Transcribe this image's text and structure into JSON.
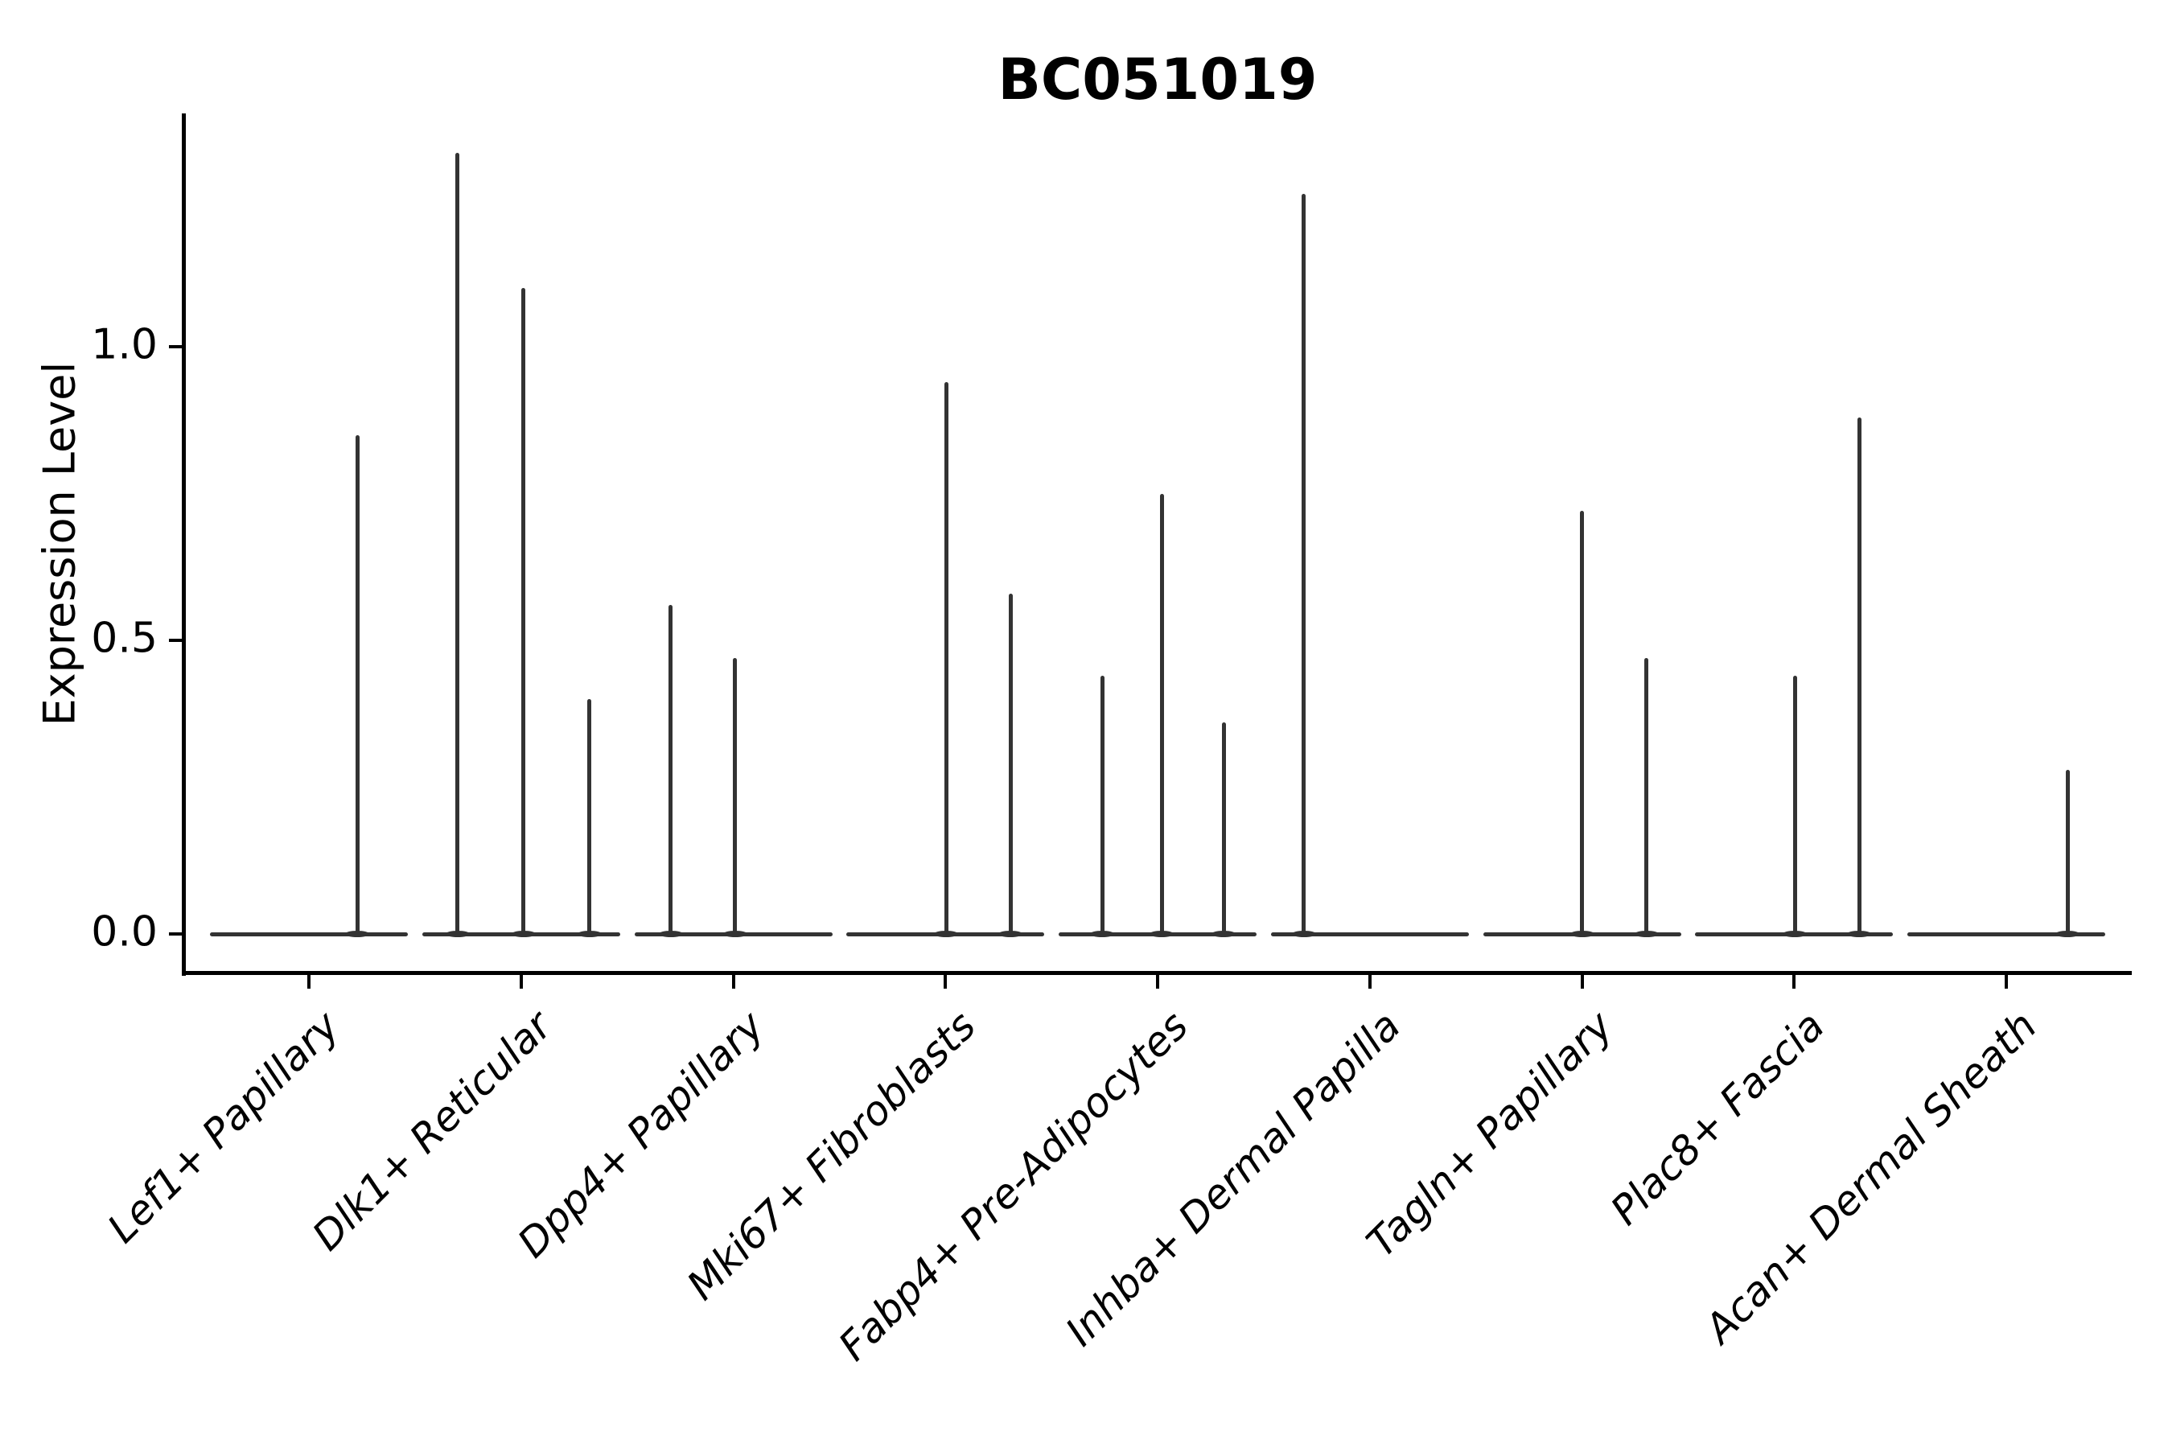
{
  "title": "BC051019",
  "y_axis": {
    "label": "Expression Level",
    "tick_labels": [
      "0.0",
      "0.5",
      "1.0"
    ]
  },
  "colors": {
    "violin_line": "#333333",
    "axis": "#000000",
    "background": "#ffffff"
  },
  "chart_data": {
    "type": "violin",
    "title": "BC051019",
    "xlabel": "",
    "ylabel": "Expression Level",
    "ylim": [
      0,
      1.4
    ],
    "yticks": [
      0.0,
      0.5,
      1.0
    ],
    "ytick_labels": [
      "0.0",
      "0.5",
      "1.0"
    ],
    "grid": false,
    "legend": false,
    "baseline_value": 0.0,
    "description": "Each category's violin is a flat line at expression 0 with thin vertical spikes at the expression levels of rare expressing cells; offset is the horizontal position of each spike within the category (px, relative to category center).",
    "categories": [
      {
        "label": "Lef1+ Papillary",
        "spikes": [
          {
            "offset": 60,
            "value": 0.85
          }
        ]
      },
      {
        "label": "Dlk1+ Reticular",
        "spikes": [
          {
            "offset": -79,
            "value": 1.33
          },
          {
            "offset": 3,
            "value": 1.1
          },
          {
            "offset": 85,
            "value": 0.4
          }
        ]
      },
      {
        "label": "Dpp4+ Papillary",
        "spikes": [
          {
            "offset": -78,
            "value": 0.56
          },
          {
            "offset": 2,
            "value": 0.47
          }
        ]
      },
      {
        "label": "Mki67+ Fibroblasts",
        "spikes": [
          {
            "offset": 1,
            "value": 0.94
          },
          {
            "offset": 81,
            "value": 0.58
          }
        ]
      },
      {
        "label": "Fabp4+ Pre-Adipocytes",
        "spikes": [
          {
            "offset": -69,
            "value": 0.44
          },
          {
            "offset": 5,
            "value": 0.75
          },
          {
            "offset": 82,
            "value": 0.36
          }
        ]
      },
      {
        "label": "Inhba+ Dermal Papilla",
        "spikes": [
          {
            "offset": -82,
            "value": 1.26
          }
        ]
      },
      {
        "label": "Tagln+ Papillary",
        "spikes": [
          {
            "offset": 0,
            "value": 0.72
          },
          {
            "offset": 80,
            "value": 0.47
          }
        ]
      },
      {
        "label": "Plac8+ Fascia",
        "spikes": [
          {
            "offset": 1,
            "value": 0.44
          },
          {
            "offset": 81,
            "value": 0.88
          }
        ]
      },
      {
        "label": "Acan+ Dermal Sheath",
        "spikes": [
          {
            "offset": 76,
            "value": 0.28
          }
        ]
      }
    ]
  }
}
